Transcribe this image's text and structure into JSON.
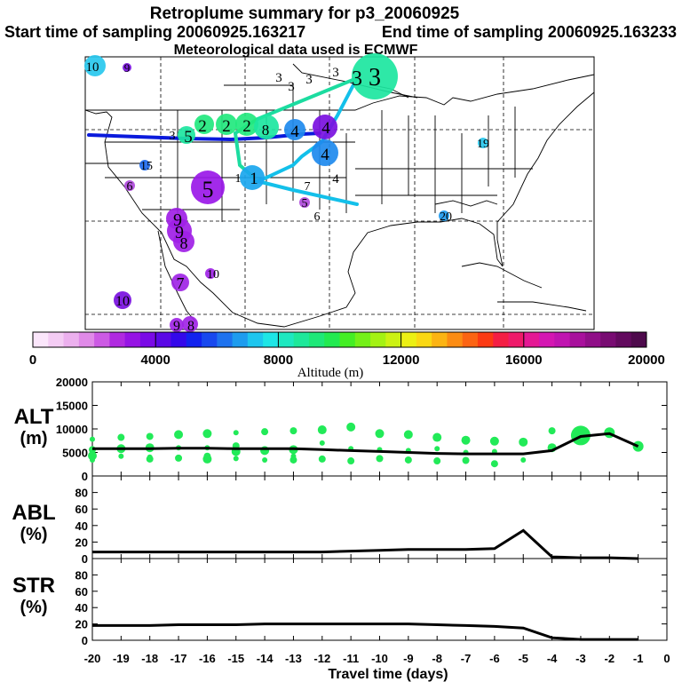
{
  "header": {
    "title": "Retroplume summary for p3_20060925",
    "start_label": "Start time of sampling 20060925.163217",
    "end_label": "End time of sampling 20060925.163233",
    "met_label": "Meteorological data used is ECMWF"
  },
  "map": {
    "path_colors": [
      "#0a1adc",
      "#13c0ea",
      "#1cdca0"
    ],
    "plumes": [
      {
        "label": "1",
        "color": "#1aa6ee",
        "size": "medium"
      },
      {
        "label": "2",
        "color": "#22e87e",
        "size": "medium"
      },
      {
        "label": "3",
        "color": "#1ce6a0",
        "size": "large"
      },
      {
        "label": "4",
        "color": "#1e8aee",
        "size": "medium"
      },
      {
        "label": "5",
        "color": "#9a18e8",
        "size": "large"
      },
      {
        "label": "6",
        "color": "#b04adc",
        "size": "small"
      },
      {
        "label": "7",
        "color": "#a024e6",
        "size": "small"
      },
      {
        "label": "8",
        "color": "#a024e6",
        "size": "small"
      },
      {
        "label": "9",
        "color": "#a020e6",
        "size": "medium"
      },
      {
        "label": "10",
        "color": "#7a10e0",
        "size": "small"
      },
      {
        "label": "15",
        "color": "#1e6aee",
        "size": "small"
      },
      {
        "label": "19",
        "color": "#28c8ee",
        "size": "small"
      },
      {
        "label": "20",
        "color": "#1e9aee",
        "size": "small"
      }
    ]
  },
  "colorbar": {
    "title": "Altitude (m)",
    "tick_labels": [
      "0",
      "4000",
      "8000",
      "12000",
      "16000",
      "20000"
    ],
    "range": [
      0,
      20000
    ],
    "colors": [
      "#fbe6fb",
      "#f4ccf4",
      "#ecb0ee",
      "#e08ae8",
      "#cc5ae4",
      "#b02ae0",
      "#9614e4",
      "#7a0ae6",
      "#5a08e6",
      "#3408ea",
      "#1222ee",
      "#1848ee",
      "#1e72ee",
      "#1e9cee",
      "#1ec6ee",
      "#1ee6e6",
      "#1ee8c0",
      "#1ee89a",
      "#1ee878",
      "#22ea50",
      "#44ee24",
      "#74f018",
      "#a4f214",
      "#ccf214",
      "#ecf014",
      "#fad814",
      "#fcb414",
      "#fc8c14",
      "#fc6414",
      "#fc3a14",
      "#f41e44",
      "#ee1a6a",
      "#e41894",
      "#d416b2",
      "#c014b0",
      "#a8109c",
      "#900e88",
      "#780c72",
      "#620a5e",
      "#4e0a4c"
    ]
  },
  "chart_data": [
    {
      "type": "line",
      "name": "ALT",
      "ylabel": "ALT (m)",
      "ylim": [
        0,
        20000
      ],
      "yticks": [
        0,
        5000,
        10000,
        15000,
        20000
      ],
      "x": [
        -20,
        -19,
        -18,
        -17,
        -16,
        -15,
        -14,
        -13,
        -12,
        -11,
        -10,
        -9,
        -8,
        -7,
        -6,
        -5,
        -4,
        -3,
        -2,
        -1
      ],
      "values": [
        5800,
        5800,
        5800,
        5900,
        5900,
        5800,
        5800,
        5800,
        5600,
        5400,
        5200,
        5000,
        4800,
        4700,
        4700,
        4700,
        5400,
        8400,
        9000,
        6300
      ],
      "scatter_color": "#22ea58",
      "scatter": [
        [
          -20,
          7800
        ],
        [
          -20,
          5600
        ],
        [
          -20,
          4300
        ],
        [
          -20,
          3400
        ],
        [
          -19,
          8200
        ],
        [
          -19,
          5800
        ],
        [
          -19,
          4200
        ],
        [
          -18,
          8400
        ],
        [
          -18,
          6000
        ],
        [
          -18,
          4000
        ],
        [
          -18,
          3600
        ],
        [
          -17,
          8800
        ],
        [
          -17,
          6000
        ],
        [
          -17,
          3800
        ],
        [
          -16,
          9000
        ],
        [
          -16,
          6000
        ],
        [
          -16,
          4200
        ],
        [
          -16,
          3600
        ],
        [
          -15,
          9200
        ],
        [
          -15,
          6400
        ],
        [
          -15,
          5200
        ],
        [
          -15,
          3700
        ],
        [
          -14,
          9400
        ],
        [
          -14,
          5400
        ],
        [
          -14,
          3400
        ],
        [
          -13,
          9600
        ],
        [
          -13,
          5600
        ],
        [
          -13,
          4200
        ],
        [
          -13,
          3400
        ],
        [
          -12,
          9800
        ],
        [
          -12,
          7000
        ],
        [
          -12,
          3600
        ],
        [
          -11,
          10400
        ],
        [
          -11,
          5800
        ],
        [
          -11,
          3200
        ],
        [
          -10,
          9000
        ],
        [
          -10,
          5600
        ],
        [
          -10,
          3700
        ],
        [
          -9,
          8800
        ],
        [
          -9,
          5400
        ],
        [
          -9,
          3400
        ],
        [
          -8,
          8200
        ],
        [
          -8,
          5800
        ],
        [
          -8,
          3200
        ],
        [
          -7,
          7600
        ],
        [
          -7,
          5000
        ],
        [
          -7,
          3300
        ],
        [
          -6,
          7400
        ],
        [
          -6,
          5200
        ],
        [
          -6,
          2600
        ],
        [
          -5,
          7200
        ],
        [
          -5,
          3400
        ],
        [
          -4,
          9600
        ],
        [
          -4,
          6000
        ],
        [
          -3,
          8600
        ],
        [
          -2,
          9200
        ],
        [
          -1,
          6300
        ]
      ]
    },
    {
      "type": "line",
      "name": "ABL",
      "ylabel": "ABL (%)",
      "ylim": [
        0,
        100
      ],
      "yticks": [
        0,
        20,
        40,
        60,
        80
      ],
      "x": [
        -20,
        -19,
        -18,
        -17,
        -16,
        -15,
        -14,
        -13,
        -12,
        -11,
        -10,
        -9,
        -8,
        -7,
        -6,
        -5,
        -4,
        -3,
        -2,
        -1
      ],
      "values": [
        8,
        8,
        8,
        8,
        8,
        8,
        8,
        8,
        8,
        9,
        10,
        11,
        11,
        11,
        12,
        34,
        2,
        1,
        1,
        0
      ]
    },
    {
      "type": "line",
      "name": "STR",
      "ylabel": "STR (%)",
      "ylim": [
        0,
        100
      ],
      "yticks": [
        0,
        20,
        40,
        60,
        80
      ],
      "x": [
        -20,
        -19,
        -18,
        -17,
        -16,
        -15,
        -14,
        -13,
        -12,
        -11,
        -10,
        -9,
        -8,
        -7,
        -6,
        -5,
        -4,
        -3,
        -2,
        -1
      ],
      "values": [
        18,
        18,
        18,
        19,
        19,
        19,
        20,
        20,
        20,
        20,
        20,
        20,
        19,
        18,
        17,
        15,
        3,
        1,
        1,
        1
      ]
    }
  ],
  "xaxis": {
    "title": "Travel time (days)",
    "tick_labels": [
      "-20",
      "-19",
      "-18",
      "-17",
      "-16",
      "-15",
      "-14",
      "-13",
      "-12",
      "-11",
      "-10",
      "-9",
      "-8",
      "-7",
      "-6",
      "-5",
      "-4",
      "-3",
      "-2",
      "-1",
      "0"
    ],
    "range": [
      -20,
      0
    ]
  },
  "panel_labels": {
    "alt": [
      "ALT",
      "(m)"
    ],
    "abl": [
      "ABL",
      "(%)"
    ],
    "str": [
      "STR",
      "(%)"
    ]
  }
}
